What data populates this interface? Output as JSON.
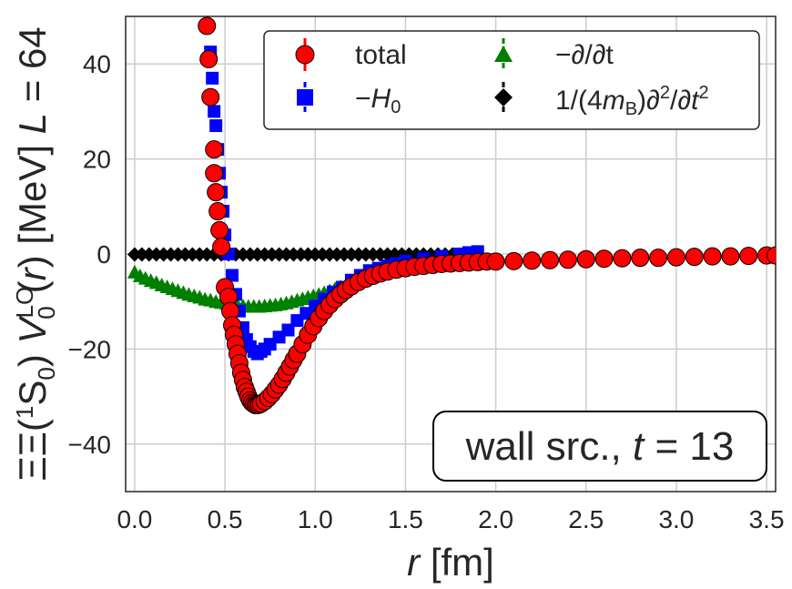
{
  "chart_data": {
    "type": "scatter",
    "title": "",
    "xlabel": "r [fm]",
    "ylabel": "ΞΞ(¹S₀) V₀ᴸᴼ(r) [MeV] L = 64",
    "xlim": [
      -0.05,
      3.55
    ],
    "ylim": [
      -50,
      50
    ],
    "xticks": [
      0.0,
      0.5,
      1.0,
      1.5,
      2.0,
      2.5,
      3.0,
      3.5
    ],
    "xtick_labels": [
      "0.0",
      "0.5",
      "1.0",
      "1.5",
      "2.0",
      "2.5",
      "3.0",
      "3.5"
    ],
    "yticks": [
      -40,
      -20,
      0,
      20,
      40
    ],
    "ytick_labels": [
      "−40",
      "−20",
      "0",
      "20",
      "40"
    ],
    "grid": true,
    "legend_position": "top-right",
    "annotation": "wall src., t = 13",
    "series": [
      {
        "name": "total",
        "marker": "circle",
        "color": "#ff0000",
        "x": [
          0.4,
          0.41,
          0.42,
          0.44,
          0.44,
          0.45,
          0.46,
          0.47,
          0.48,
          0.5,
          0.52,
          0.53,
          0.54,
          0.55,
          0.56,
          0.57,
          0.58,
          0.59,
          0.6,
          0.61,
          0.62,
          0.63,
          0.64,
          0.65,
          0.66,
          0.67,
          0.68,
          0.69,
          0.7,
          0.72,
          0.74,
          0.76,
          0.78,
          0.8,
          0.82,
          0.84,
          0.86,
          0.88,
          0.9,
          0.93,
          0.96,
          0.99,
          1.02,
          1.05,
          1.08,
          1.11,
          1.14,
          1.17,
          1.2,
          1.24,
          1.28,
          1.32,
          1.36,
          1.4,
          1.45,
          1.5,
          1.55,
          1.6,
          1.65,
          1.7,
          1.75,
          1.8,
          1.85,
          1.9,
          1.95,
          2.0,
          2.1,
          2.2,
          2.3,
          2.4,
          2.5,
          2.6,
          2.7,
          2.8,
          2.9,
          3.0,
          3.1,
          3.2,
          3.3,
          3.4,
          3.5,
          3.55
        ],
        "values": [
          48,
          41,
          33,
          22,
          17,
          13,
          9,
          5,
          1.5,
          -7,
          -9,
          -12,
          -15,
          -17,
          -19,
          -21,
          -23,
          -25,
          -26.5,
          -28,
          -29,
          -30,
          -30.8,
          -31.3,
          -31.6,
          -31.8,
          -31.8,
          -31.7,
          -31.5,
          -31,
          -30.3,
          -29.5,
          -28.5,
          -27.5,
          -26.3,
          -25,
          -23.7,
          -22.3,
          -21,
          -19,
          -17,
          -15.2,
          -13.5,
          -12,
          -10.7,
          -9.5,
          -8.5,
          -7.6,
          -6.8,
          -5.9,
          -5.2,
          -4.6,
          -4.1,
          -3.7,
          -3.3,
          -3,
          -2.7,
          -2.5,
          -2.3,
          -2.1,
          -2,
          -1.9,
          -1.8,
          -1.7,
          -1.6,
          -1.6,
          -1.5,
          -1.4,
          -1.3,
          -1.2,
          -1.1,
          -1,
          -0.9,
          -0.8,
          -0.8,
          -0.7,
          -0.6,
          -0.5,
          -0.5,
          -0.4,
          -0.3,
          -0.3
        ]
      },
      {
        "name": "−H₀",
        "marker": "square",
        "color": "#0000ff",
        "x": [
          0.41,
          0.42,
          0.43,
          0.44,
          0.45,
          0.46,
          0.47,
          0.48,
          0.49,
          0.5,
          0.52,
          0.54,
          0.56,
          0.58,
          0.6,
          0.62,
          0.64,
          0.66,
          0.68,
          0.7,
          0.72,
          0.75,
          0.8,
          0.85,
          0.9,
          0.95,
          1.0,
          1.05,
          1.1,
          1.15,
          1.2,
          1.25,
          1.3,
          1.35,
          1.4,
          1.45,
          1.5,
          1.6,
          1.7,
          1.8,
          1.85,
          1.9
        ],
        "values": [
          41,
          42.5,
          37,
          30,
          27,
          22,
          17,
          13,
          9,
          4,
          0,
          -4.5,
          -8.5,
          -12,
          -15.5,
          -18,
          -19.5,
          -20.5,
          -21,
          -20.5,
          -20,
          -19,
          -17.5,
          -16,
          -14,
          -12.5,
          -11,
          -9.5,
          -8,
          -7,
          -5.5,
          -4.5,
          -3.5,
          -3,
          -2.5,
          -2,
          -1.5,
          -1,
          -0.5,
          0,
          0.3,
          0.5
        ]
      },
      {
        "name": "−∂/∂t",
        "marker": "triangle",
        "color": "#008000",
        "x": [
          0.0,
          0.03,
          0.06,
          0.09,
          0.12,
          0.15,
          0.18,
          0.21,
          0.24,
          0.27,
          0.3,
          0.33,
          0.36,
          0.39,
          0.42,
          0.45,
          0.48,
          0.51,
          0.54,
          0.57,
          0.6,
          0.63,
          0.66,
          0.69,
          0.72,
          0.75,
          0.78,
          0.81,
          0.84,
          0.87,
          0.9,
          0.93,
          0.96,
          0.99,
          1.02,
          1.05,
          1.08,
          1.11,
          1.14,
          1.17,
          1.2,
          1.23,
          1.26,
          1.29,
          1.32
        ],
        "values": [
          -4,
          -4.8,
          -5.3,
          -5.8,
          -6.2,
          -6.7,
          -7.1,
          -7.5,
          -7.9,
          -8.3,
          -8.7,
          -9.0,
          -9.3,
          -9.7,
          -9.9,
          -10.2,
          -10.4,
          -10.6,
          -10.8,
          -11.0,
          -11.1,
          -11.2,
          -11.2,
          -11.2,
          -11.1,
          -11.0,
          -10.9,
          -10.7,
          -10.5,
          -10.2,
          -9.9,
          -9.6,
          -9.3,
          -9.0,
          -8.7,
          -8.3,
          -7.9,
          -7.5,
          -7.1,
          -6.7,
          -6.3,
          -5.9,
          -5.5,
          -5.1,
          -4.7
        ]
      },
      {
        "name": "1/(4m_B)∂²/∂t²",
        "marker": "diamond",
        "color": "#000000",
        "x": [
          0.0,
          0.04,
          0.08,
          0.12,
          0.16,
          0.2,
          0.24,
          0.28,
          0.32,
          0.36,
          0.4,
          0.44,
          0.48,
          0.52,
          0.56,
          0.6,
          0.64,
          0.68,
          0.72,
          0.76,
          0.8,
          0.84,
          0.88,
          0.92,
          0.96,
          1.0,
          1.04,
          1.08,
          1.12,
          1.16,
          1.2,
          1.24,
          1.28,
          1.32,
          1.36,
          1.4,
          1.44,
          1.48,
          1.52,
          1.56,
          1.6,
          1.64,
          1.68,
          1.72,
          1.76,
          1.8,
          1.84,
          1.88
        ],
        "values": [
          -0.1,
          -0.1,
          -0.1,
          -0.1,
          -0.1,
          -0.1,
          -0.1,
          -0.1,
          -0.1,
          -0.1,
          -0.1,
          -0.1,
          -0.1,
          -0.1,
          -0.1,
          -0.1,
          -0.1,
          -0.1,
          -0.1,
          -0.1,
          -0.1,
          -0.1,
          -0.1,
          -0.1,
          -0.1,
          -0.1,
          -0.1,
          -0.1,
          -0.1,
          -0.1,
          -0.1,
          -0.1,
          -0.1,
          -0.1,
          -0.1,
          -0.1,
          -0.1,
          -0.1,
          -0.1,
          -0.1,
          -0.1,
          -0.1,
          -0.1,
          -0.1,
          -0.1,
          -0.1,
          -0.1,
          -0.1
        ]
      }
    ]
  },
  "legend": {
    "total": "total",
    "h0_prefix": "−",
    "h0_var": "H",
    "h0_sub": "0",
    "dt": "−∂/∂t",
    "d2_a": "1/(4",
    "d2_var": "m",
    "d2_sub": "B",
    "d2_b": ")∂",
    "d2_sup1": "2",
    "d2_c": "/∂",
    "d2_t": "t",
    "d2_sup2": "2"
  },
  "annotation_parts": {
    "text": "wall src., ",
    "var": "t",
    "eq": " = 13"
  },
  "axis_parts": {
    "x_var": "r",
    "x_unit": " [fm]",
    "y_a": "ΞΞ(",
    "y_sup1": "1",
    "y_b": "S",
    "y_sub0": "0",
    "y_c": ") ",
    "y_V": "V",
    "y_supLO": "LO",
    "y_sub0b": "0",
    "y_d": "(",
    "y_r": "r",
    "y_e": ") [MeV] ",
    "y_L": "L",
    "y_f": " = 64"
  }
}
